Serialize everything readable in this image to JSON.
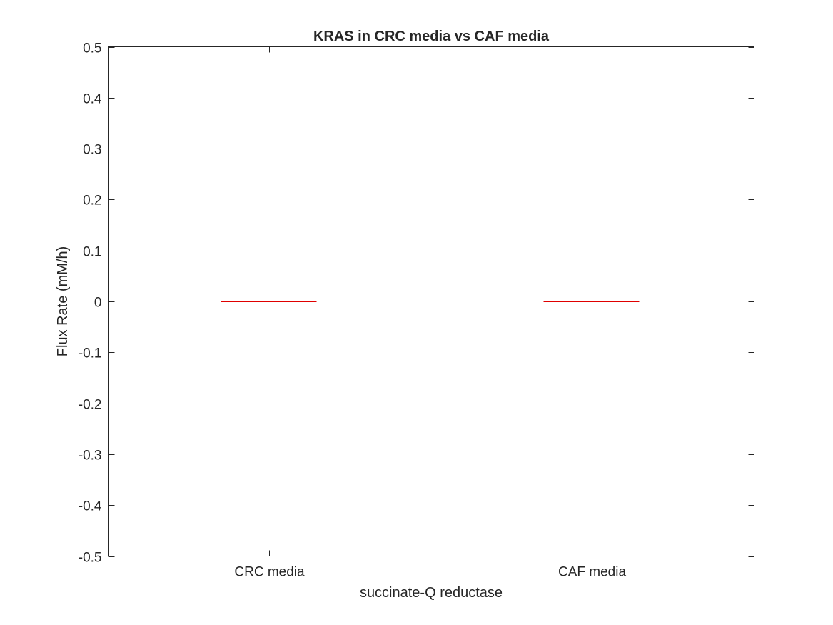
{
  "chart_data": {
    "type": "box",
    "title": "KRAS in CRC media vs CAF media",
    "xlabel": "succinate-Q reductase",
    "ylabel": "Flux Rate (mM/h)",
    "categories": [
      "CRC media",
      "CAF media"
    ],
    "series": [
      {
        "values": [
          {
            "median": 0,
            "q1": 0,
            "q3": 0,
            "whisker_low": 0,
            "whisker_high": 0
          },
          {
            "median": 0,
            "q1": 0,
            "q3": 0,
            "whisker_low": 0,
            "whisker_high": 0
          }
        ]
      }
    ],
    "ylim": [
      -0.5,
      0.5
    ],
    "yticks": [
      -0.5,
      -0.4,
      -0.3,
      -0.2,
      -0.1,
      0,
      0.1,
      0.2,
      0.3,
      0.4,
      0.5
    ],
    "ytick_labels": [
      "-0.5",
      "-0.4",
      "-0.3",
      "-0.2",
      "-0.1",
      "0",
      "0.1",
      "0.2",
      "0.3",
      "0.4",
      "0.5"
    ],
    "grid": false,
    "legend": "none",
    "colors": {
      "median": "#e00000",
      "axes": "#262626",
      "background": "#ffffff"
    }
  }
}
